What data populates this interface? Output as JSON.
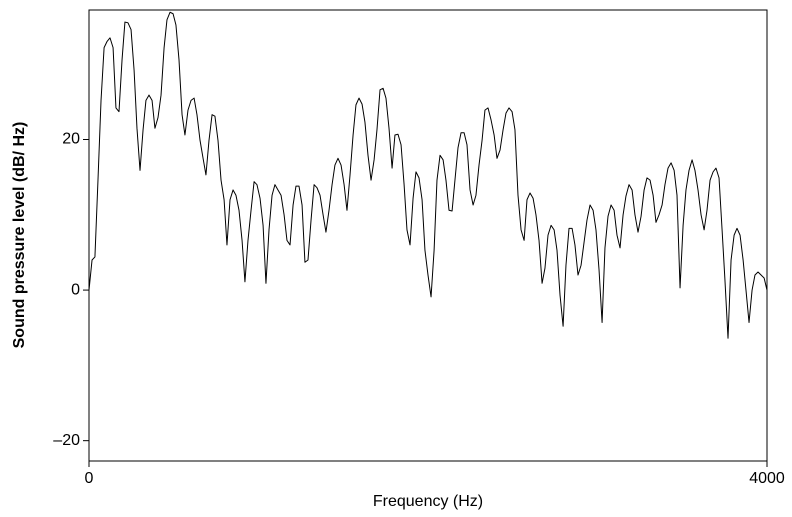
{
  "chart_data": {
    "type": "line",
    "x_label": "Frequency (Hz)",
    "y_label": "Sound pressure level (dB/ Hz)",
    "xlim": [
      0,
      4000
    ],
    "xticks": [
      0,
      4000
    ],
    "ylim": [
      -22.7,
      37.2
    ],
    "yticks": [
      {
        "value": -20,
        "label": "–20"
      },
      0,
      20
    ],
    "grid": false,
    "x": [
      0,
      18,
      35,
      53,
      71,
      89,
      106,
      124,
      142,
      159,
      177,
      195,
      212,
      230,
      248,
      266,
      283,
      301,
      319,
      336,
      354,
      372,
      389,
      407,
      425,
      443,
      460,
      478,
      496,
      513,
      531,
      549,
      566,
      584,
      602,
      620,
      637,
      655,
      673,
      690,
      708,
      726,
      743,
      761,
      779,
      797,
      814,
      832,
      850,
      867,
      885,
      903,
      920,
      938,
      956,
      974,
      991,
      1009,
      1027,
      1044,
      1062,
      1080,
      1097,
      1115,
      1133,
      1151,
      1168,
      1186,
      1204,
      1221,
      1239,
      1257,
      1274,
      1292,
      1310,
      1328,
      1345,
      1363,
      1381,
      1398,
      1416,
      1434,
      1451,
      1469,
      1487,
      1505,
      1522,
      1540,
      1558,
      1575,
      1593,
      1611,
      1628,
      1646,
      1664,
      1682,
      1699,
      1717,
      1735,
      1752,
      1770,
      1788,
      1805,
      1823,
      1841,
      1859,
      1876,
      1894,
      1912,
      1929,
      1947,
      1965,
      1982,
      2000,
      2018,
      2036,
      2053,
      2071,
      2089,
      2106,
      2124,
      2142,
      2159,
      2177,
      2195,
      2213,
      2230,
      2248,
      2266,
      2283,
      2301,
      2319,
      2336,
      2354,
      2372,
      2390,
      2407,
      2425,
      2443,
      2460,
      2478,
      2496,
      2513,
      2531,
      2549,
      2567,
      2584,
      2602,
      2620,
      2637,
      2655,
      2673,
      2690,
      2708,
      2726,
      2744,
      2761,
      2779,
      2797,
      2814,
      2832,
      2850,
      2867,
      2885,
      2903,
      2921,
      2938,
      2956,
      2974,
      2991,
      3009,
      3027,
      3044,
      3062,
      3080,
      3098,
      3115,
      3133,
      3151,
      3168,
      3186,
      3204,
      3221,
      3239,
      3257,
      3275,
      3292,
      3310,
      3328,
      3345,
      3363,
      3381,
      3398,
      3416,
      3434,
      3452,
      3469,
      3487,
      3505,
      3522,
      3540,
      3558,
      3575,
      3593,
      3611,
      3629,
      3646,
      3664,
      3682,
      3699,
      3717,
      3735,
      3752,
      3770,
      3788,
      3806,
      3823,
      3841,
      3859,
      3876,
      3894,
      3912,
      3929,
      3947,
      3965,
      3983,
      4000
    ],
    "series": [
      {
        "color": "#000000",
        "values": [
          0,
          4.0,
          4.4,
          14.6,
          25.2,
          32.2,
          33.0,
          33.5,
          32.2,
          24.2,
          23.7,
          30.6,
          35.6,
          35.5,
          34.6,
          29.2,
          21.5,
          15.9,
          21.3,
          25.2,
          25.9,
          25.2,
          21.5,
          22.9,
          25.9,
          32.2,
          35.9,
          36.9,
          36.7,
          35.2,
          30.6,
          23.3,
          20.6,
          23.9,
          25.2,
          25.5,
          23.3,
          19.9,
          17.5,
          15.3,
          19.9,
          23.3,
          23.1,
          19.9,
          14.6,
          12.0,
          6.0,
          12.0,
          13.3,
          12.6,
          10.6,
          6.6,
          1.1,
          6.6,
          10.6,
          14.4,
          14.0,
          12.2,
          8.6,
          0.9,
          8.0,
          12.6,
          14.0,
          13.3,
          12.6,
          10.0,
          6.6,
          6.0,
          11.3,
          13.8,
          13.8,
          11.3,
          3.7,
          4.0,
          9.3,
          14.0,
          13.6,
          12.6,
          10.0,
          7.7,
          10.6,
          14.0,
          16.6,
          17.5,
          16.6,
          14.0,
          10.6,
          15.3,
          20.6,
          24.6,
          25.5,
          24.7,
          22.3,
          17.9,
          14.6,
          17.3,
          21.3,
          26.6,
          26.8,
          25.5,
          21.5,
          16.2,
          20.6,
          20.7,
          19.3,
          14.0,
          8.0,
          6.0,
          12.2,
          15.7,
          14.9,
          12.0,
          5.3,
          2.0,
          -0.9,
          5.3,
          14.6,
          17.9,
          17.3,
          14.6,
          10.6,
          10.5,
          14.6,
          18.9,
          20.9,
          20.9,
          19.3,
          13.3,
          11.3,
          12.6,
          16.6,
          19.9,
          23.9,
          24.2,
          22.6,
          20.6,
          17.5,
          18.6,
          21.3,
          23.5,
          24.2,
          23.7,
          21.3,
          12.6,
          8.0,
          6.6,
          12.0,
          12.9,
          12.2,
          10.0,
          6.6,
          0.9,
          2.9,
          7.3,
          8.6,
          8.0,
          5.3,
          -0.7,
          -4.8,
          3.3,
          8.2,
          8.2,
          6.0,
          2.0,
          3.3,
          6.4,
          9.3,
          11.3,
          10.6,
          8.0,
          2.7,
          -4.3,
          5.6,
          9.8,
          11.3,
          10.6,
          7.3,
          5.6,
          10.0,
          12.5,
          14.0,
          13.3,
          10.0,
          7.7,
          9.8,
          13.3,
          14.9,
          14.6,
          12.6,
          9.0,
          10.0,
          11.3,
          14.0,
          16.2,
          16.9,
          15.9,
          12.6,
          0.3,
          8.6,
          13.3,
          15.9,
          17.3,
          15.9,
          13.3,
          10.0,
          8.0,
          10.6,
          14.6,
          15.7,
          16.2,
          14.9,
          8.0,
          1.3,
          -6.4,
          4.0,
          7.3,
          8.2,
          7.3,
          4.0,
          0,
          -4.3,
          0,
          2.0,
          2.4,
          2.0,
          1.6,
          0
        ]
      }
    ]
  }
}
